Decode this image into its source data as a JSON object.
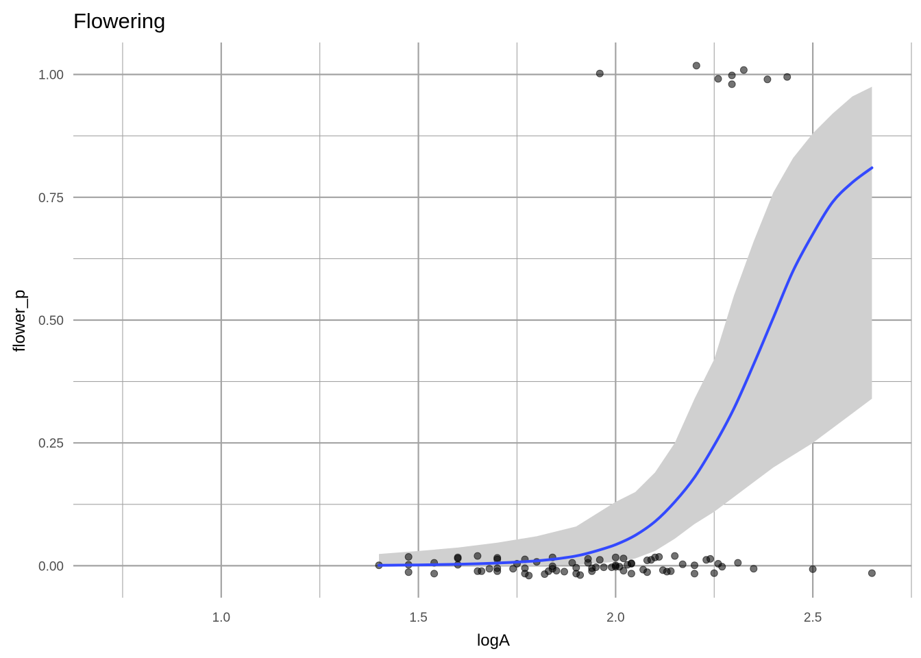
{
  "chart_data": {
    "type": "scatter",
    "title": "Flowering",
    "xlabel": "logA",
    "ylabel": "flower_p",
    "xlim": [
      0.625,
      2.75
    ],
    "ylim": [
      -0.065,
      1.065
    ],
    "x_ticks": [
      1.0,
      1.5,
      2.0,
      2.5
    ],
    "x_tick_labels": [
      "1.0",
      "1.5",
      "2.0",
      "2.5"
    ],
    "x_minor_ticks": [
      0.75,
      1.25,
      1.75,
      2.25,
      2.75
    ],
    "y_ticks": [
      0.0,
      0.25,
      0.5,
      0.75,
      1.0
    ],
    "y_tick_labels": [
      "0.00",
      "0.25",
      "0.50",
      "0.75",
      "1.00"
    ],
    "y_minor_ticks": [
      0.125,
      0.375,
      0.625,
      0.875
    ],
    "grid": true,
    "colors": {
      "points": "#000000",
      "fit_line": "#3349ff",
      "confidence_band": "#d0d0d0",
      "grid": "#a3a3a3"
    },
    "points": [
      {
        "x": 1.4,
        "y": 0.001
      },
      {
        "x": 1.475,
        "y": 0.018
      },
      {
        "x": 1.475,
        "y": 0.002
      },
      {
        "x": 1.475,
        "y": -0.013
      },
      {
        "x": 1.54,
        "y": 0.006
      },
      {
        "x": 1.54,
        "y": -0.016
      },
      {
        "x": 1.6,
        "y": 0.015
      },
      {
        "x": 1.6,
        "y": 0.002
      },
      {
        "x": 1.6,
        "y": 0.017
      },
      {
        "x": 1.65,
        "y": 0.02
      },
      {
        "x": 1.66,
        "y": -0.011
      },
      {
        "x": 1.65,
        "y": -0.011
      },
      {
        "x": 1.68,
        "y": -0.006
      },
      {
        "x": 1.7,
        "y": 0.016
      },
      {
        "x": 1.7,
        "y": 0.013
      },
      {
        "x": 1.7,
        "y": -0.005
      },
      {
        "x": 1.7,
        "y": -0.011
      },
      {
        "x": 1.74,
        "y": -0.006
      },
      {
        "x": 1.75,
        "y": 0.004
      },
      {
        "x": 1.77,
        "y": 0.013
      },
      {
        "x": 1.77,
        "y": -0.005
      },
      {
        "x": 1.77,
        "y": -0.016
      },
      {
        "x": 1.78,
        "y": -0.02
      },
      {
        "x": 1.8,
        "y": 0.008
      },
      {
        "x": 1.82,
        "y": -0.017
      },
      {
        "x": 1.83,
        "y": -0.011
      },
      {
        "x": 1.84,
        "y": 0.017
      },
      {
        "x": 1.84,
        "y": -0.001
      },
      {
        "x": 1.84,
        "y": -0.006
      },
      {
        "x": 1.85,
        "y": -0.01
      },
      {
        "x": 1.87,
        "y": -0.012
      },
      {
        "x": 1.89,
        "y": 0.006
      },
      {
        "x": 1.9,
        "y": -0.004
      },
      {
        "x": 1.9,
        "y": -0.016
      },
      {
        "x": 1.91,
        "y": -0.019
      },
      {
        "x": 1.93,
        "y": 0.014
      },
      {
        "x": 1.93,
        "y": 0.006
      },
      {
        "x": 1.94,
        "y": -0.005
      },
      {
        "x": 1.94,
        "y": -0.011
      },
      {
        "x": 1.95,
        "y": -0.003
      },
      {
        "x": 1.96,
        "y": 0.012
      },
      {
        "x": 1.97,
        "y": -0.003
      },
      {
        "x": 1.99,
        "y": -0.003
      },
      {
        "x": 2.0,
        "y": 0.017
      },
      {
        "x": 2.0,
        "y": 0.001
      },
      {
        "x": 2.0,
        "y": -0.002
      },
      {
        "x": 2.01,
        "y": -0.002
      },
      {
        "x": 2.02,
        "y": 0.015
      },
      {
        "x": 2.02,
        "y": -0.01
      },
      {
        "x": 2.03,
        "y": 0.002
      },
      {
        "x": 2.04,
        "y": -0.016
      },
      {
        "x": 2.04,
        "y": 0.004
      },
      {
        "x": 2.04,
        "y": 0.005
      },
      {
        "x": 2.07,
        "y": -0.008
      },
      {
        "x": 2.08,
        "y": 0.011
      },
      {
        "x": 2.08,
        "y": -0.013
      },
      {
        "x": 2.09,
        "y": 0.012
      },
      {
        "x": 2.1,
        "y": 0.017
      },
      {
        "x": 2.11,
        "y": 0.018
      },
      {
        "x": 2.12,
        "y": -0.009
      },
      {
        "x": 2.13,
        "y": -0.012
      },
      {
        "x": 2.14,
        "y": -0.011
      },
      {
        "x": 2.15,
        "y": 0.02
      },
      {
        "x": 2.17,
        "y": 0.003
      },
      {
        "x": 2.2,
        "y": 0.001
      },
      {
        "x": 2.2,
        "y": -0.016
      },
      {
        "x": 2.23,
        "y": 0.012
      },
      {
        "x": 2.24,
        "y": 0.014
      },
      {
        "x": 2.25,
        "y": -0.015
      },
      {
        "x": 2.26,
        "y": 0.004
      },
      {
        "x": 2.27,
        "y": -0.002
      },
      {
        "x": 2.31,
        "y": 0.006
      },
      {
        "x": 2.35,
        "y": -0.006
      },
      {
        "x": 2.5,
        "y": -0.007
      },
      {
        "x": 2.65,
        "y": -0.015
      },
      {
        "x": 1.96,
        "y": 1.002
      },
      {
        "x": 2.205,
        "y": 1.018
      },
      {
        "x": 2.26,
        "y": 0.991
      },
      {
        "x": 2.295,
        "y": 0.998
      },
      {
        "x": 2.295,
        "y": 0.98
      },
      {
        "x": 2.325,
        "y": 1.009
      },
      {
        "x": 2.385,
        "y": 0.99
      },
      {
        "x": 2.435,
        "y": 0.995
      }
    ],
    "fit_line": {
      "x": [
        1.4,
        1.45,
        1.5,
        1.55,
        1.6,
        1.65,
        1.7,
        1.75,
        1.8,
        1.85,
        1.9,
        1.95,
        2.0,
        2.05,
        2.1,
        2.15,
        2.2,
        2.25,
        2.3,
        2.35,
        2.4,
        2.45,
        2.5,
        2.55,
        2.6,
        2.65
      ],
      "y": [
        0.001,
        0.0013,
        0.0017,
        0.0023,
        0.003,
        0.004,
        0.0055,
        0.0075,
        0.01,
        0.014,
        0.02,
        0.03,
        0.043,
        0.062,
        0.09,
        0.13,
        0.18,
        0.245,
        0.32,
        0.41,
        0.505,
        0.6,
        0.675,
        0.74,
        0.78,
        0.81
      ]
    },
    "confidence_band": {
      "x": [
        1.4,
        1.5,
        1.6,
        1.7,
        1.8,
        1.9,
        2.0,
        2.05,
        2.1,
        2.15,
        2.2,
        2.25,
        2.3,
        2.35,
        2.4,
        2.45,
        2.5,
        2.55,
        2.6,
        2.65
      ],
      "lower": [
        0.0,
        0.0,
        0.0,
        0.0,
        0.0,
        0.002,
        0.008,
        0.015,
        0.03,
        0.055,
        0.085,
        0.11,
        0.14,
        0.17,
        0.2,
        0.225,
        0.25,
        0.28,
        0.31,
        0.34
      ],
      "upper": [
        0.024,
        0.03,
        0.037,
        0.047,
        0.06,
        0.08,
        0.13,
        0.15,
        0.19,
        0.25,
        0.34,
        0.42,
        0.55,
        0.66,
        0.76,
        0.83,
        0.88,
        0.92,
        0.955,
        0.975
      ]
    }
  }
}
